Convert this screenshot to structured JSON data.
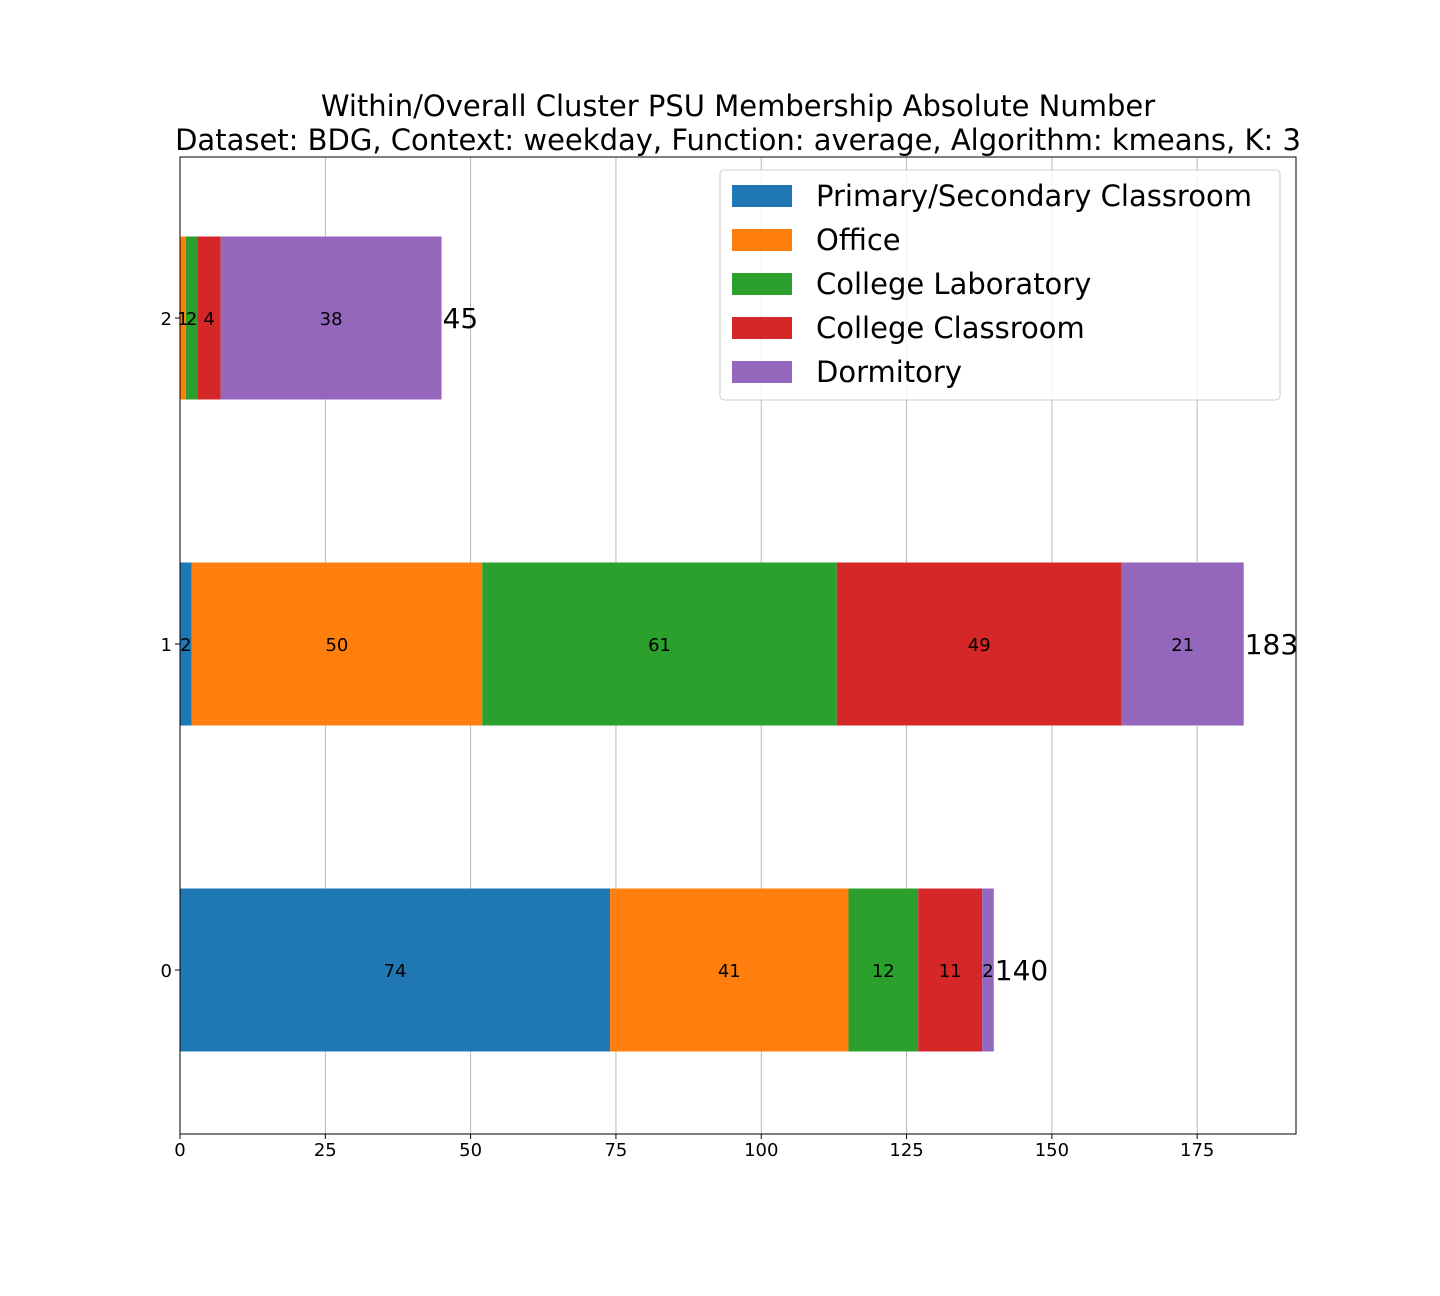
{
  "chart_data": {
    "type": "bar",
    "orientation": "horizontal",
    "stacked": true,
    "title_line1": "Within/Overall Cluster PSU Membership Absolute Number",
    "title_line2": "Dataset: BDG, Context: weekday, Function: average, Algorithm: kmeans, K: 3",
    "xlabel": "",
    "ylabel": "",
    "categories": [
      "0",
      "1",
      "2"
    ],
    "series": [
      {
        "name": "Primary/Secondary Classroom",
        "color": "#1f77b4",
        "values": [
          74,
          2,
          0
        ]
      },
      {
        "name": "Office",
        "color": "#ff7f0e",
        "values": [
          41,
          50,
          1
        ]
      },
      {
        "name": "College Laboratory",
        "color": "#2ca02c",
        "values": [
          12,
          61,
          2
        ]
      },
      {
        "name": "College Classroom",
        "color": "#d62728",
        "values": [
          11,
          49,
          4
        ]
      },
      {
        "name": "Dormitory",
        "color": "#9467bd",
        "values": [
          2,
          21,
          38
        ]
      }
    ],
    "totals": [
      140,
      183,
      45
    ],
    "xlim": [
      0,
      192
    ],
    "xticks": [
      0,
      25,
      50,
      75,
      100,
      125,
      150,
      175
    ],
    "grid": "x",
    "legend_position": "top-right"
  }
}
